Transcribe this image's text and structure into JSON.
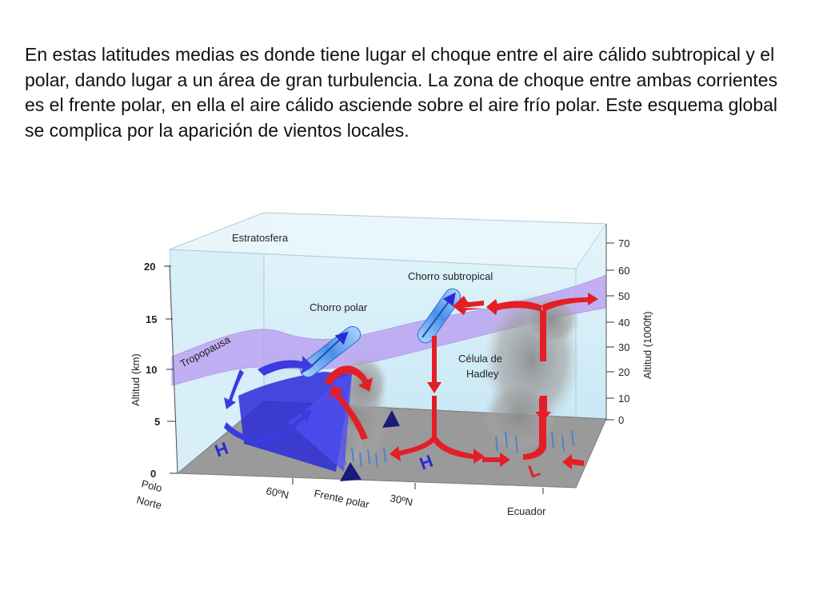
{
  "paragraph": "En estas latitudes medias es donde tiene lugar el choque entre el aire cálido subtropical y el polar, dando lugar a un área de gran turbulencia. La zona de choque entre ambas corrientes es el frente polar, en ella el aire cálido asciende sobre el aire frío polar. Este esquema global se complica por la aparición de vientos locales.",
  "diagram": {
    "stratosphere": "Estratosfera",
    "tropopause": "Tropopausa",
    "polar_jet": "Chorro polar",
    "subtropical_jet": "Chorro subtropical",
    "hadley_line1": "Célula de",
    "hadley_line2": "Hadley",
    "left_axis_title": "Altitud (km)",
    "right_axis_title": "Altitud (1000ft)",
    "left_ticks": [
      "20",
      "15",
      "10",
      "5",
      "0"
    ],
    "right_ticks": [
      "70",
      "60",
      "50",
      "40",
      "30",
      "20",
      "10",
      "0"
    ],
    "pole_line1": "Polo",
    "pole_line2": "Norte",
    "lat60": "60ºN",
    "polar_front": "Frente polar",
    "lat30": "30ºN",
    "equator": "Ecuador",
    "high1": "H",
    "high2": "H",
    "low": "L"
  },
  "colors": {
    "cold_air": "#2a2ad8",
    "warm_air": "#e41e26",
    "jet": "#5aa0f0",
    "tropopause": "#b89af0",
    "ground": "#9a9a9a",
    "sky": "#dff2fb"
  }
}
